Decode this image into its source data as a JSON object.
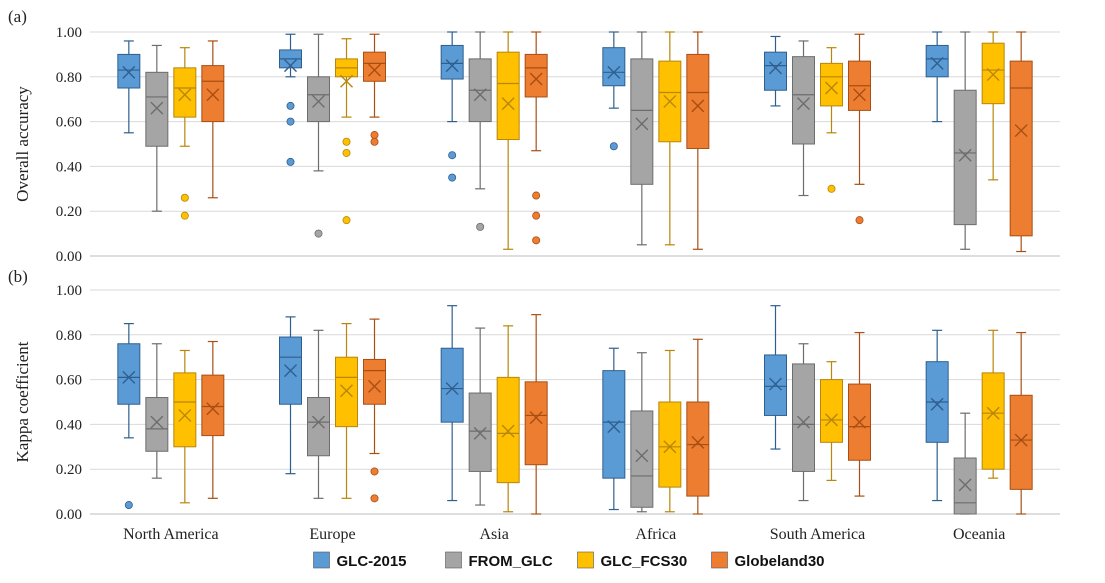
{
  "chart_data": [
    {
      "type": "box",
      "panel_label": "(a)",
      "ylabel": "Overall accuracy",
      "ylim": [
        0,
        1
      ],
      "yticks": [
        "0.00",
        "0.20",
        "0.40",
        "0.60",
        "0.80",
        "1.00"
      ],
      "grid": true,
      "categories": [
        "North America",
        "Europe",
        "Asia",
        "Africa",
        "South America",
        "Oceania"
      ],
      "series": [
        {
          "name": "GLC-2015",
          "color": "#5b9bd5",
          "edge": "#2e5f8f",
          "boxes": [
            {
              "min": 0.55,
              "q1": 0.75,
              "median": 0.83,
              "q3": 0.9,
              "max": 0.96,
              "mean": 0.82,
              "outliers": []
            },
            {
              "min": 0.8,
              "q1": 0.84,
              "median": 0.88,
              "q3": 0.92,
              "max": 0.99,
              "mean": 0.85,
              "outliers": [
                0.67,
                0.6,
                0.42
              ]
            },
            {
              "min": 0.6,
              "q1": 0.79,
              "median": 0.86,
              "q3": 0.94,
              "max": 1.0,
              "mean": 0.85,
              "outliers": [
                0.45,
                0.35
              ]
            },
            {
              "min": 0.66,
              "q1": 0.76,
              "median": 0.82,
              "q3": 0.93,
              "max": 1.0,
              "mean": 0.82,
              "outliers": [
                0.49
              ]
            },
            {
              "min": 0.67,
              "q1": 0.74,
              "median": 0.85,
              "q3": 0.91,
              "max": 0.98,
              "mean": 0.84,
              "outliers": []
            },
            {
              "min": 0.6,
              "q1": 0.8,
              "median": 0.88,
              "q3": 0.94,
              "max": 1.0,
              "mean": 0.86,
              "outliers": []
            }
          ]
        },
        {
          "name": "FROM_GLC",
          "color": "#a5a5a5",
          "edge": "#6d6d6d",
          "boxes": [
            {
              "min": 0.2,
              "q1": 0.49,
              "median": 0.71,
              "q3": 0.82,
              "max": 0.94,
              "mean": 0.66,
              "outliers": []
            },
            {
              "min": 0.38,
              "q1": 0.6,
              "median": 0.72,
              "q3": 0.8,
              "max": 0.99,
              "mean": 0.69,
              "outliers": [
                0.1
              ]
            },
            {
              "min": 0.3,
              "q1": 0.6,
              "median": 0.74,
              "q3": 0.88,
              "max": 1.0,
              "mean": 0.72,
              "outliers": [
                0.13
              ]
            },
            {
              "min": 0.05,
              "q1": 0.32,
              "median": 0.65,
              "q3": 0.88,
              "max": 1.0,
              "mean": 0.59,
              "outliers": []
            },
            {
              "min": 0.27,
              "q1": 0.5,
              "median": 0.72,
              "q3": 0.89,
              "max": 0.96,
              "mean": 0.68,
              "outliers": []
            },
            {
              "min": 0.03,
              "q1": 0.14,
              "median": 0.46,
              "q3": 0.74,
              "max": 1.0,
              "mean": 0.45,
              "outliers": []
            }
          ]
        },
        {
          "name": "GLC_FCS30",
          "color": "#ffc000",
          "edge": "#b8860b",
          "boxes": [
            {
              "min": 0.49,
              "q1": 0.62,
              "median": 0.75,
              "q3": 0.84,
              "max": 0.93,
              "mean": 0.72,
              "outliers": [
                0.26,
                0.18
              ]
            },
            {
              "min": 0.62,
              "q1": 0.8,
              "median": 0.84,
              "q3": 0.88,
              "max": 0.97,
              "mean": 0.78,
              "outliers": [
                0.51,
                0.46,
                0.16
              ]
            },
            {
              "min": 0.03,
              "q1": 0.52,
              "median": 0.77,
              "q3": 0.91,
              "max": 1.0,
              "mean": 0.68,
              "outliers": []
            },
            {
              "min": 0.05,
              "q1": 0.51,
              "median": 0.73,
              "q3": 0.87,
              "max": 1.0,
              "mean": 0.69,
              "outliers": []
            },
            {
              "min": 0.55,
              "q1": 0.67,
              "median": 0.8,
              "q3": 0.86,
              "max": 0.93,
              "mean": 0.75,
              "outliers": [
                0.3
              ]
            },
            {
              "min": 0.34,
              "q1": 0.68,
              "median": 0.83,
              "q3": 0.95,
              "max": 1.0,
              "mean": 0.81,
              "outliers": []
            }
          ]
        },
        {
          "name": "Globeland30",
          "color": "#ed7d31",
          "edge": "#a84f13",
          "boxes": [
            {
              "min": 0.26,
              "q1": 0.6,
              "median": 0.78,
              "q3": 0.85,
              "max": 0.96,
              "mean": 0.72,
              "outliers": []
            },
            {
              "min": 0.62,
              "q1": 0.78,
              "median": 0.86,
              "q3": 0.91,
              "max": 0.99,
              "mean": 0.83,
              "outliers": [
                0.54,
                0.51
              ]
            },
            {
              "min": 0.47,
              "q1": 0.71,
              "median": 0.84,
              "q3": 0.9,
              "max": 1.0,
              "mean": 0.79,
              "outliers": [
                0.27,
                0.18,
                0.07
              ]
            },
            {
              "min": 0.03,
              "q1": 0.48,
              "median": 0.73,
              "q3": 0.9,
              "max": 1.0,
              "mean": 0.67,
              "outliers": []
            },
            {
              "min": 0.32,
              "q1": 0.65,
              "median": 0.76,
              "q3": 0.87,
              "max": 0.99,
              "mean": 0.72,
              "outliers": [
                0.16
              ]
            },
            {
              "min": 0.02,
              "q1": 0.09,
              "median": 0.75,
              "q3": 0.87,
              "max": 1.0,
              "mean": 0.56,
              "outliers": []
            }
          ]
        }
      ]
    },
    {
      "type": "box",
      "panel_label": "(b)",
      "ylabel": "Kappa coefficient",
      "ylim": [
        0,
        1
      ],
      "yticks": [
        "0.00",
        "0.20",
        "0.40",
        "0.60",
        "0.80",
        "1.00"
      ],
      "grid": true,
      "categories": [
        "North America",
        "Europe",
        "Asia",
        "Africa",
        "South America",
        "Oceania"
      ],
      "series": [
        {
          "name": "GLC-2015",
          "color": "#5b9bd5",
          "edge": "#2e5f8f",
          "boxes": [
            {
              "min": 0.34,
              "q1": 0.49,
              "median": 0.61,
              "q3": 0.76,
              "max": 0.85,
              "mean": 0.61,
              "outliers": [
                0.04
              ]
            },
            {
              "min": 0.18,
              "q1": 0.49,
              "median": 0.7,
              "q3": 0.79,
              "max": 0.88,
              "mean": 0.64,
              "outliers": []
            },
            {
              "min": 0.06,
              "q1": 0.41,
              "median": 0.56,
              "q3": 0.74,
              "max": 0.93,
              "mean": 0.56,
              "outliers": []
            },
            {
              "min": 0.02,
              "q1": 0.16,
              "median": 0.41,
              "q3": 0.64,
              "max": 0.74,
              "mean": 0.39,
              "outliers": []
            },
            {
              "min": 0.29,
              "q1": 0.44,
              "median": 0.57,
              "q3": 0.71,
              "max": 0.93,
              "mean": 0.58,
              "outliers": []
            },
            {
              "min": 0.06,
              "q1": 0.32,
              "median": 0.5,
              "q3": 0.68,
              "max": 0.82,
              "mean": 0.49,
              "outliers": []
            }
          ]
        },
        {
          "name": "FROM_GLC",
          "color": "#a5a5a5",
          "edge": "#6d6d6d",
          "boxes": [
            {
              "min": 0.16,
              "q1": 0.28,
              "median": 0.38,
              "q3": 0.52,
              "max": 0.76,
              "mean": 0.41,
              "outliers": []
            },
            {
              "min": 0.07,
              "q1": 0.26,
              "median": 0.41,
              "q3": 0.52,
              "max": 0.82,
              "mean": 0.41,
              "outliers": []
            },
            {
              "min": 0.04,
              "q1": 0.19,
              "median": 0.37,
              "q3": 0.54,
              "max": 0.83,
              "mean": 0.36,
              "outliers": []
            },
            {
              "min": 0.01,
              "q1": 0.03,
              "median": 0.17,
              "q3": 0.46,
              "max": 0.72,
              "mean": 0.26,
              "outliers": []
            },
            {
              "min": 0.06,
              "q1": 0.19,
              "median": 0.4,
              "q3": 0.67,
              "max": 0.76,
              "mean": 0.41,
              "outliers": []
            },
            {
              "min": 0.0,
              "q1": 0.0,
              "median": 0.05,
              "q3": 0.25,
              "max": 0.45,
              "mean": 0.13,
              "outliers": []
            }
          ]
        },
        {
          "name": "GLC_FCS30",
          "color": "#ffc000",
          "edge": "#b8860b",
          "boxes": [
            {
              "min": 0.05,
              "q1": 0.3,
              "median": 0.5,
              "q3": 0.63,
              "max": 0.73,
              "mean": 0.44,
              "outliers": []
            },
            {
              "min": 0.07,
              "q1": 0.39,
              "median": 0.61,
              "q3": 0.7,
              "max": 0.85,
              "mean": 0.55,
              "outliers": []
            },
            {
              "min": 0.01,
              "q1": 0.14,
              "median": 0.36,
              "q3": 0.61,
              "max": 0.84,
              "mean": 0.37,
              "outliers": []
            },
            {
              "min": 0.01,
              "q1": 0.12,
              "median": 0.3,
              "q3": 0.5,
              "max": 0.73,
              "mean": 0.3,
              "outliers": []
            },
            {
              "min": 0.15,
              "q1": 0.32,
              "median": 0.42,
              "q3": 0.6,
              "max": 0.68,
              "mean": 0.42,
              "outliers": []
            },
            {
              "min": 0.16,
              "q1": 0.2,
              "median": 0.45,
              "q3": 0.63,
              "max": 0.82,
              "mean": 0.45,
              "outliers": []
            }
          ]
        },
        {
          "name": "Globeland30",
          "color": "#ed7d31",
          "edge": "#a84f13",
          "boxes": [
            {
              "min": 0.07,
              "q1": 0.35,
              "median": 0.48,
              "q3": 0.62,
              "max": 0.77,
              "mean": 0.47,
              "outliers": []
            },
            {
              "min": 0.27,
              "q1": 0.49,
              "median": 0.64,
              "q3": 0.69,
              "max": 0.87,
              "mean": 0.57,
              "outliers": [
                0.19,
                0.07
              ]
            },
            {
              "min": 0.0,
              "q1": 0.22,
              "median": 0.44,
              "q3": 0.59,
              "max": 0.89,
              "mean": 0.43,
              "outliers": []
            },
            {
              "min": 0.0,
              "q1": 0.08,
              "median": 0.31,
              "q3": 0.5,
              "max": 0.78,
              "mean": 0.32,
              "outliers": []
            },
            {
              "min": 0.08,
              "q1": 0.24,
              "median": 0.39,
              "q3": 0.58,
              "max": 0.81,
              "mean": 0.41,
              "outliers": []
            },
            {
              "min": 0.0,
              "q1": 0.11,
              "median": 0.33,
              "q3": 0.53,
              "max": 0.81,
              "mean": 0.33,
              "outliers": []
            }
          ]
        }
      ]
    }
  ],
  "legend": {
    "placement": "bottom-center",
    "items": [
      {
        "name": "GLC-2015",
        "color": "#5b9bd5"
      },
      {
        "name": "FROM_GLC",
        "color": "#a5a5a5"
      },
      {
        "name": "GLC_FCS30",
        "color": "#ffc000"
      },
      {
        "name": "Globeland30",
        "color": "#ed7d31"
      }
    ]
  }
}
